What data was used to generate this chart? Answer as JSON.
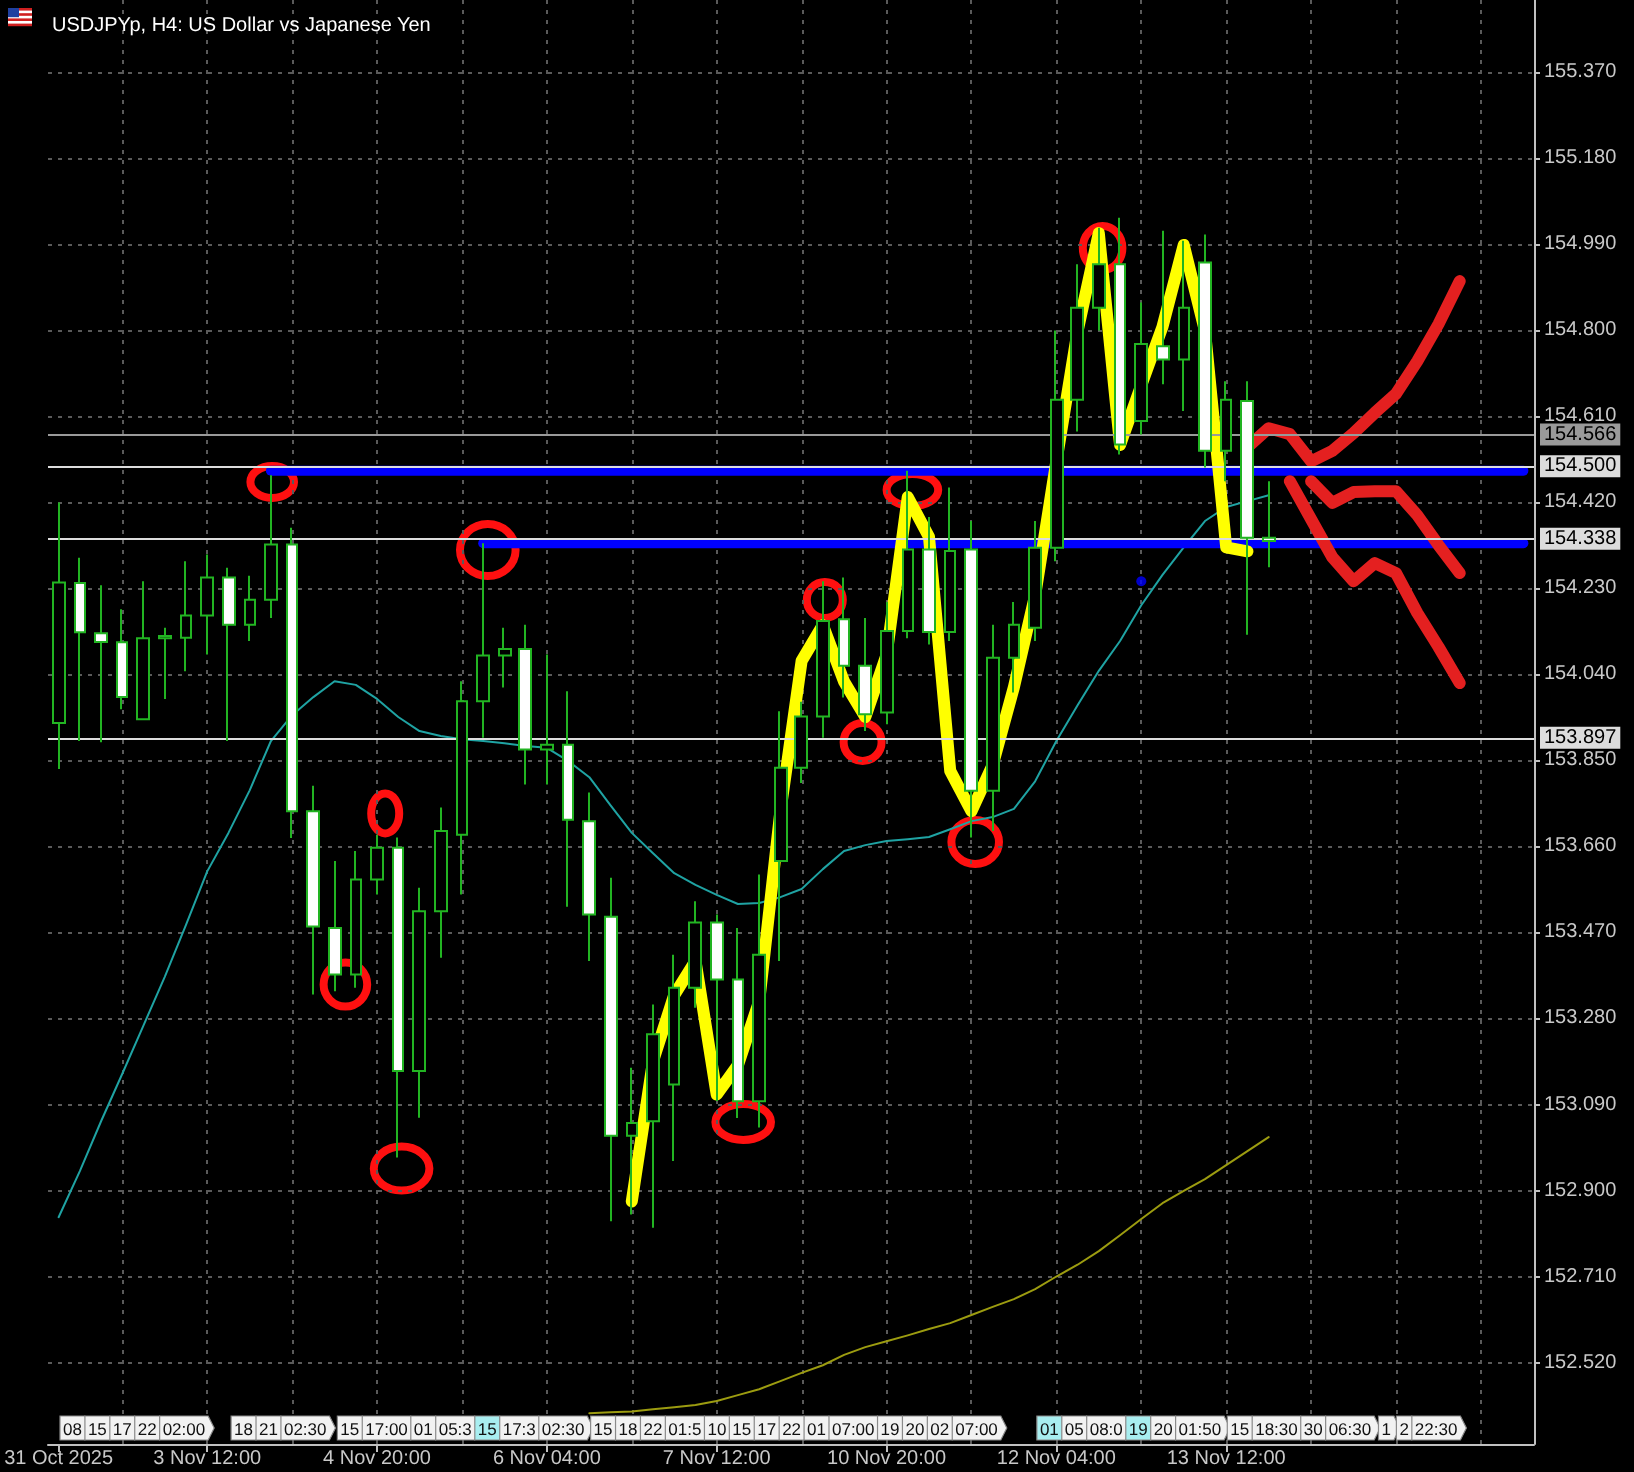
{
  "chart_data": {
    "type": "candlestick",
    "title": "USDJPYp, H4: US Dollar vs Japanese Yen",
    "categories": [
      "31 Oct 2025",
      null,
      null,
      null,
      null,
      null,
      null,
      "3 Nov 12:00",
      null,
      null,
      null,
      null,
      null,
      null,
      null,
      "4 Nov 20:00",
      null,
      null,
      null,
      null,
      null,
      null,
      null,
      "6 Nov 04:00",
      null,
      null,
      null,
      null,
      null,
      null,
      null,
      "7 Nov 12:00",
      null,
      null,
      null,
      null,
      null,
      null,
      null,
      "10 Nov 20:00",
      null,
      null,
      null,
      null,
      null,
      null,
      null,
      "12 Nov 04:00",
      null,
      null,
      null,
      null,
      null,
      null,
      null,
      "13 Nov 12:00",
      null,
      null,
      null,
      null,
      null,
      null,
      null,
      null,
      null,
      null,
      null,
      null,
      null,
      null
    ],
    "series": [
      {
        "color": "#22b422",
        "ohlc": [
          [
            153.933,
            154.42,
            153.831,
            154.243
          ],
          [
            154.242,
            154.298,
            153.893,
            154.133
          ],
          [
            154.131,
            154.237,
            153.89,
            154.112
          ],
          [
            154.111,
            154.184,
            153.963,
            153.99
          ],
          [
            153.941,
            154.246,
            153.941,
            154.12
          ],
          [
            154.12,
            154.143,
            153.986,
            154.125
          ],
          [
            154.121,
            154.29,
            154.047,
            154.17
          ],
          [
            154.17,
            154.305,
            154.084,
            154.254
          ],
          [
            154.254,
            154.276,
            153.893,
            154.15
          ],
          [
            154.15,
            154.258,
            154.114,
            154.205
          ],
          [
            154.205,
            154.48,
            154.165,
            154.327
          ],
          [
            154.327,
            154.364,
            153.679,
            153.738
          ],
          [
            153.738,
            153.794,
            153.333,
            153.483
          ],
          [
            153.48,
            153.628,
            153.34,
            153.377
          ],
          [
            153.377,
            153.65,
            153.348,
            153.587
          ],
          [
            153.587,
            153.686,
            153.554,
            153.657
          ],
          [
            153.657,
            153.68,
            152.973,
            153.164
          ],
          [
            153.164,
            153.569,
            153.061,
            153.517
          ],
          [
            153.517,
            153.746,
            153.414,
            153.694
          ],
          [
            153.686,
            154.025,
            153.554,
            153.981
          ],
          [
            153.981,
            154.33,
            153.9,
            154.082
          ],
          [
            154.082,
            154.143,
            154.011,
            154.096
          ],
          [
            154.096,
            154.15,
            153.797,
            153.874
          ],
          [
            153.874,
            154.084,
            153.797,
            153.885
          ],
          [
            153.885,
            154.003,
            153.527,
            153.719
          ],
          [
            153.716,
            153.779,
            153.407,
            153.51
          ],
          [
            153.505,
            153.591,
            152.832,
            153.021
          ],
          [
            153.021,
            153.171,
            152.847,
            153.049
          ],
          [
            153.053,
            153.311,
            152.818,
            153.245
          ],
          [
            153.134,
            153.421,
            152.965,
            153.348
          ],
          [
            153.348,
            153.539,
            153.304,
            153.492
          ],
          [
            153.492,
            153.51,
            153.098,
            153.366
          ],
          [
            153.366,
            153.48,
            153.06,
            153.097
          ],
          [
            153.097,
            153.598,
            153.039,
            153.421
          ],
          [
            153.628,
            153.959,
            153.407,
            153.834
          ],
          [
            153.834,
            153.98,
            153.8,
            153.947
          ],
          [
            153.947,
            154.246,
            153.9,
            154.158
          ],
          [
            154.162,
            154.254,
            153.989,
            154.059
          ],
          [
            154.059,
            154.165,
            153.915,
            153.952
          ],
          [
            153.956,
            154.2,
            153.93,
            154.136
          ],
          [
            154.136,
            154.49,
            154.12,
            154.316
          ],
          [
            154.316,
            154.388,
            154.106,
            154.134
          ],
          [
            154.134,
            154.453,
            154.114,
            154.313
          ],
          [
            154.316,
            154.379,
            153.68,
            153.783
          ],
          [
            153.783,
            154.15,
            153.694,
            154.077
          ],
          [
            154.077,
            154.2,
            154,
            154.15
          ],
          [
            154.143,
            154.379,
            154.114,
            154.32
          ],
          [
            154.32,
            154.8,
            154.29,
            154.647
          ],
          [
            154.647,
            154.946,
            154.577,
            154.85
          ],
          [
            154.85,
            155.027,
            154.8,
            154.946
          ],
          [
            154.946,
            155.049,
            154.526,
            154.548
          ],
          [
            154.6,
            154.862,
            154.57,
            154.77
          ],
          [
            154.765,
            155.02,
            154.681,
            154.736
          ],
          [
            154.736,
            154.998,
            154.622,
            154.85
          ],
          [
            154.95,
            155.012,
            154.497,
            154.534
          ],
          [
            154.534,
            154.688,
            154.467,
            154.647
          ],
          [
            154.644,
            154.688,
            154.128,
            154.342
          ],
          [
            154.342,
            154.467,
            154.277,
            154.335
          ],
          null,
          null,
          null,
          null,
          null,
          null,
          null,
          null,
          null,
          null,
          null,
          null
        ],
        "colors": [
          "#000000",
          "#ffffff",
          "#ffffff",
          "#ffffff",
          "#000000",
          "#000000",
          "#000000",
          "#000000",
          "#ffffff",
          "#000000",
          "#000000",
          "#ffffff",
          "#ffffff",
          "#ffffff",
          "#000000",
          "#000000",
          "#ffffff",
          "#000000",
          "#000000",
          "#000000",
          "#000000",
          "#000000",
          "#ffffff",
          "#000000",
          "#ffffff",
          "#ffffff",
          "#ffffff",
          "#000000",
          "#000000",
          "#000000",
          "#000000",
          "#ffffff",
          "#ffffff",
          "#000000",
          "#000000",
          "#000000",
          "#000000",
          "#ffffff",
          "#ffffff",
          "#000000",
          "#000000",
          "#ffffff",
          "#000000",
          "#ffffff",
          "#000000",
          "#000000",
          "#000000",
          "#000000",
          "#000000",
          "#000000",
          "#ffffff",
          "#000000",
          "#ffffff",
          "#000000",
          "#ffffff",
          "#000000",
          "#ffffff",
          "#ffffff",
          null,
          null,
          null,
          null,
          null,
          null,
          null,
          null,
          null,
          null,
          null,
          null
        ]
      },
      {
        "type": "line",
        "color": "#1fa3a3",
        "values": [
          152.841,
          152.943,
          153.053,
          153.158,
          153.265,
          153.372,
          153.487,
          153.605,
          153.69,
          153.784,
          153.893,
          153.95,
          153.99,
          154.025,
          154.017,
          153.986,
          153.946,
          153.915,
          153.904,
          153.897,
          153.893,
          153.888,
          153.882,
          153.878,
          153.849,
          153.813,
          153.751,
          153.69,
          153.645,
          153.601,
          153.575,
          153.553,
          153.533,
          153.535,
          153.548,
          153.566,
          153.61,
          153.65,
          153.663,
          153.672,
          153.676,
          153.681,
          153.698,
          153.716,
          153.725,
          153.743,
          153.804,
          153.893,
          153.972,
          154.048,
          154.114,
          154.193,
          154.26,
          154.321,
          154.379,
          154.41,
          154.423,
          154.436,
          null,
          null,
          null,
          null,
          null,
          null,
          null,
          null,
          null,
          null,
          null,
          null
        ]
      },
      {
        "type": "line",
        "color": "#9c9c10",
        "values": [
          null,
          null,
          null,
          null,
          null,
          null,
          null,
          null,
          null,
          null,
          null,
          null,
          null,
          null,
          null,
          null,
          null,
          null,
          null,
          null,
          null,
          null,
          null,
          null,
          null,
          152.408,
          152.41,
          152.412,
          152.417,
          152.421,
          152.426,
          152.435,
          152.448,
          152.461,
          152.479,
          152.497,
          152.514,
          152.537,
          152.554,
          152.567,
          152.58,
          152.594,
          152.607,
          152.625,
          152.643,
          152.66,
          152.682,
          152.71,
          152.736,
          152.766,
          152.801,
          152.837,
          152.872,
          152.899,
          152.925,
          152.956,
          152.987,
          153.018,
          null,
          null,
          null,
          null,
          null,
          null,
          null,
          null,
          null,
          null,
          null,
          null
        ]
      },
      {
        "type": "line",
        "color": "#0000ff",
        "values": [
          null,
          null,
          null,
          null,
          null,
          null,
          null,
          null,
          null,
          null,
          154.49,
          154.49,
          154.49,
          154.49,
          154.49,
          154.49,
          154.49,
          154.49,
          154.49,
          154.49,
          154.49,
          154.49,
          154.49,
          154.49,
          154.49,
          154.49,
          154.49,
          154.49,
          154.49,
          154.49,
          154.49,
          154.49,
          154.49,
          154.49,
          154.49,
          154.49,
          154.49,
          154.49,
          154.49,
          154.49,
          154.49,
          154.49,
          154.49,
          154.49,
          154.49,
          154.49,
          154.49,
          154.49,
          154.49,
          154.49,
          154.49,
          154.49,
          154.49,
          154.49,
          154.49,
          154.49,
          154.49,
          154.49,
          154.49,
          154.49,
          154.49,
          154.49,
          154.49,
          154.49,
          154.49,
          154.49,
          154.49,
          154.49,
          154.49,
          154.49
        ]
      },
      {
        "type": "line",
        "color": "#0000ff",
        "values": [
          null,
          null,
          null,
          null,
          null,
          null,
          null,
          null,
          null,
          null,
          null,
          null,
          null,
          null,
          null,
          null,
          null,
          null,
          null,
          null,
          154.33,
          154.33,
          154.33,
          154.33,
          154.33,
          154.33,
          154.33,
          154.33,
          154.33,
          154.33,
          154.33,
          154.33,
          154.33,
          154.33,
          154.33,
          154.33,
          154.33,
          154.33,
          154.33,
          154.33,
          154.33,
          154.33,
          154.33,
          154.33,
          154.33,
          154.33,
          154.33,
          154.33,
          154.33,
          154.33,
          154.33,
          154.33,
          154.33,
          154.33,
          154.33,
          154.33,
          154.33,
          154.33,
          154.33,
          154.33,
          154.33,
          154.33,
          154.33,
          154.33,
          154.33,
          154.33,
          154.33,
          154.33,
          154.33,
          154.33
        ]
      },
      {
        "type": "scatter",
        "color": "#0000ff",
        "marker": "circle",
        "values": [
          null,
          null,
          null,
          null,
          null,
          null,
          null,
          null,
          null,
          null,
          null,
          null,
          null,
          null,
          null,
          null,
          null,
          null,
          null,
          null,
          null,
          null,
          null,
          null,
          null,
          null,
          null,
          null,
          null,
          null,
          null,
          null,
          null,
          null,
          null,
          null,
          null,
          null,
          null,
          null,
          null,
          null,
          null,
          null,
          null,
          null,
          null,
          null,
          null,
          null,
          null,
          154.246,
          null,
          null,
          null,
          null,
          null,
          null,
          null,
          null,
          null,
          null,
          null,
          null,
          null,
          null,
          null,
          null,
          null,
          null
        ]
      },
      {
        "type": "line",
        "color": "#ffff00",
        "values": [
          null,
          null,
          null,
          null,
          null,
          null,
          null,
          null,
          null,
          null,
          null,
          null,
          null,
          null,
          null,
          null,
          null,
          null,
          null,
          null,
          null,
          null,
          null,
          null,
          null,
          null,
          null,
          152.876,
          153.186,
          153.332,
          153.407,
          153.112,
          153.177,
          153.318,
          153.738,
          154.07,
          154.149,
          154.024,
          153.946,
          154.083,
          154.432,
          154.344,
          153.827,
          153.738,
          153.84,
          154.012,
          154.215,
          154.511,
          154.799,
          155.015,
          154.547,
          154.679,
          154.808,
          154.989,
          154.799,
          154.321,
          154.312,
          null,
          null,
          null,
          null,
          null,
          null,
          null,
          null,
          null,
          null,
          null,
          null,
          null
        ]
      },
      {
        "type": "line",
        "color": "#e42020",
        "values": [
          null,
          null,
          null,
          null,
          null,
          null,
          null,
          null,
          null,
          null,
          null,
          null,
          null,
          null,
          null,
          null,
          null,
          null,
          null,
          null,
          null,
          null,
          null,
          null,
          null,
          null,
          null,
          null,
          null,
          null,
          null,
          null,
          null,
          null,
          null,
          null,
          null,
          null,
          null,
          null,
          null,
          null,
          null,
          null,
          null,
          null,
          null,
          null,
          null,
          null,
          null,
          null,
          null,
          null,
          null,
          null,
          154.542,
          154.584,
          154.571,
          154.511,
          154.534,
          154.573,
          154.618,
          154.66,
          154.732,
          154.814,
          154.909,
          null,
          null,
          null
        ]
      },
      {
        "type": "line",
        "color": "#e42020",
        "values": [
          null,
          null,
          null,
          null,
          null,
          null,
          null,
          null,
          null,
          null,
          null,
          null,
          null,
          null,
          null,
          null,
          null,
          null,
          null,
          null,
          null,
          null,
          null,
          null,
          null,
          null,
          null,
          null,
          null,
          null,
          null,
          null,
          null,
          null,
          null,
          null,
          null,
          null,
          null,
          null,
          null,
          null,
          null,
          null,
          null,
          null,
          null,
          null,
          null,
          null,
          null,
          null,
          null,
          null,
          null,
          null,
          null,
          null,
          154.467,
          154.383,
          154.299,
          154.246,
          154.286,
          154.264,
          154.176,
          154.101,
          154.021,
          null,
          null,
          null
        ]
      },
      {
        "type": "line",
        "color": "#e42020",
        "values": [
          null,
          null,
          null,
          null,
          null,
          null,
          null,
          null,
          null,
          null,
          null,
          null,
          null,
          null,
          null,
          null,
          null,
          null,
          null,
          null,
          null,
          null,
          null,
          null,
          null,
          null,
          null,
          null,
          null,
          null,
          null,
          null,
          null,
          null,
          null,
          null,
          null,
          null,
          null,
          null,
          null,
          null,
          null,
          null,
          null,
          null,
          null,
          null,
          null,
          null,
          null,
          null,
          null,
          null,
          null,
          null,
          null,
          null,
          null,
          154.467,
          154.419,
          154.443,
          154.445,
          154.445,
          154.392,
          154.326,
          154.264,
          null,
          null,
          null
        ]
      }
    ],
    "ylim": [
      152.34,
      155.53
    ],
    "yticks": [
      {
        "value": 152.52,
        "label": "152.520"
      },
      {
        "value": 152.71,
        "label": "152.710"
      },
      {
        "value": 152.9,
        "label": "152.900"
      },
      {
        "value": 153.09,
        "label": "153.090"
      },
      {
        "value": 153.28,
        "label": "153.280"
      },
      {
        "value": 153.47,
        "label": "153.470"
      },
      {
        "value": 153.66,
        "label": "153.660"
      },
      {
        "value": 153.85,
        "label": "153.850"
      },
      {
        "value": 154.04,
        "label": "154.040"
      },
      {
        "value": 154.23,
        "label": "154.230"
      },
      {
        "value": 154.42,
        "label": "154.420"
      },
      {
        "value": 154.61,
        "label": "154.610"
      },
      {
        "value": 154.8,
        "label": "154.800"
      },
      {
        "value": 154.99,
        "label": "154.990"
      },
      {
        "value": 155.18,
        "label": "155.180"
      },
      {
        "value": 155.37,
        "label": "155.370"
      }
    ],
    "grid": true,
    "marker": "none",
    "ref_lines": [
      {
        "axis": "y",
        "value": 154.566,
        "label": "154.566",
        "color": "#9a9a9a"
      },
      {
        "axis": "y",
        "value": 154.5,
        "label": "154.500",
        "color": "#dcdcdc"
      },
      {
        "axis": "y",
        "value": 154.338,
        "label": "154.338",
        "color": "#dcdcdc"
      },
      {
        "axis": "y",
        "value": 153.897,
        "label": "153.897",
        "color": "#dcdcdc"
      }
    ],
    "annotations": [
      "08",
      "15",
      "17",
      "22",
      "02:00",
      "18",
      "21",
      "02:30",
      "15",
      "17:00",
      "01",
      "05:3",
      "15",
      "17:3",
      "02:30",
      "15",
      "18",
      "22",
      "01:5",
      "10",
      "15",
      "17",
      "22",
      "01",
      "07:00",
      "19",
      "20",
      "02",
      "07:00",
      "01",
      "05",
      "08:0",
      "19",
      "20",
      "01:50",
      "15",
      "18:30",
      "30",
      "06:30",
      "1",
      "2",
      "22:30"
    ]
  }
}
